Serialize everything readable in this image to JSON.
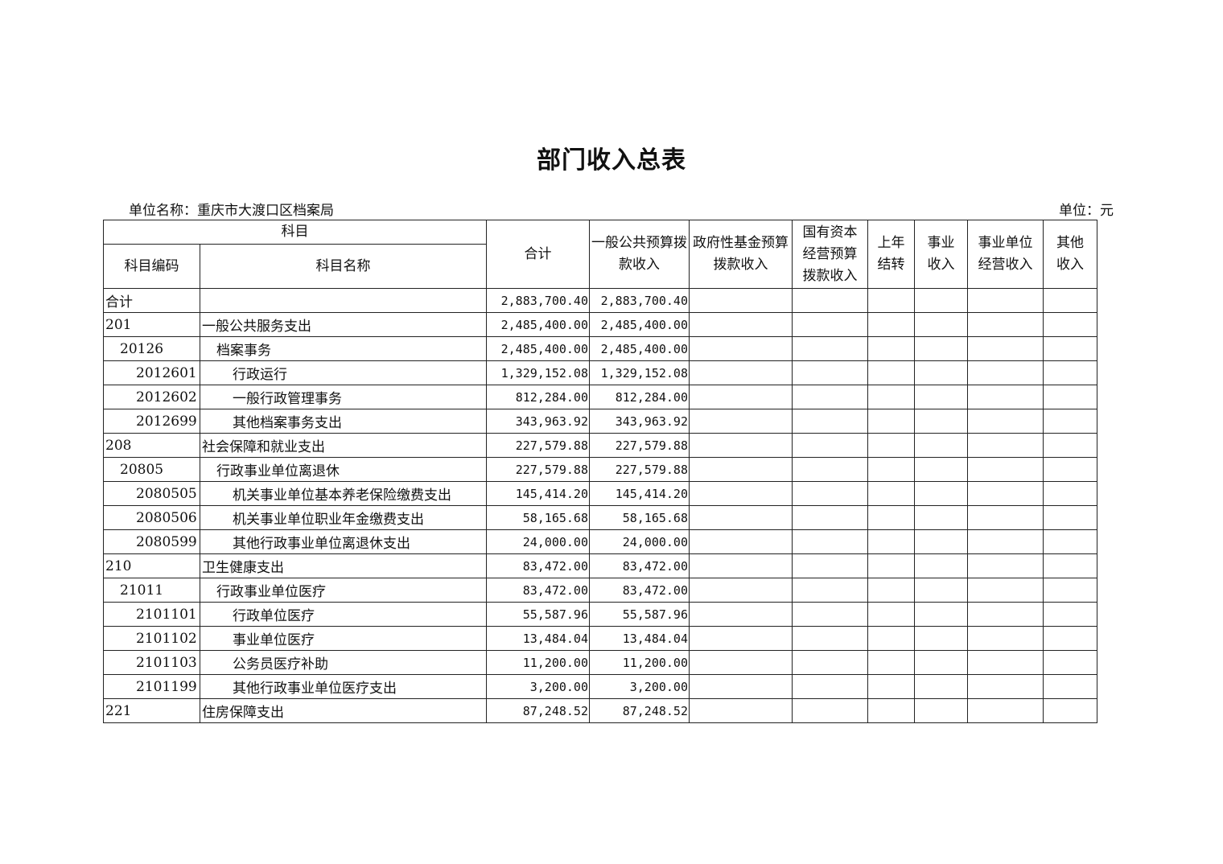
{
  "title": "部门收入总表",
  "unit_name": "单位名称：重庆市大渡口区档案局",
  "unit": "单位：元",
  "headers": {
    "subject": "科目",
    "code": "科目编码",
    "name": "科目名称",
    "total": "合计",
    "general": "一般公共预算拨款收入",
    "fund": "政府性基金预算拨款收入",
    "state_capital": "国有资本经营预算拨款收入",
    "carryover": "上年结转",
    "business": "事业收入",
    "business_unit": "事业单位经营收入",
    "other": "其他收入"
  },
  "rows": [
    {
      "level": 1,
      "code": "合计",
      "name": "",
      "total": "2,883,700.40",
      "general": "2,883,700.40"
    },
    {
      "level": 1,
      "code": "201",
      "name": "一般公共服务支出",
      "total": "2,485,400.00",
      "general": "2,485,400.00"
    },
    {
      "level": 2,
      "code": "20126",
      "name": "档案事务",
      "total": "2,485,400.00",
      "general": "2,485,400.00"
    },
    {
      "level": 3,
      "code": "2012601",
      "name": "行政运行",
      "total": "1,329,152.08",
      "general": "1,329,152.08"
    },
    {
      "level": 3,
      "code": "2012602",
      "name": "一般行政管理事务",
      "total": "812,284.00",
      "general": "812,284.00"
    },
    {
      "level": 3,
      "code": "2012699",
      "name": "其他档案事务支出",
      "total": "343,963.92",
      "general": "343,963.92"
    },
    {
      "level": 1,
      "code": "208",
      "name": "社会保障和就业支出",
      "total": "227,579.88",
      "general": "227,579.88"
    },
    {
      "level": 2,
      "code": "20805",
      "name": "行政事业单位离退休",
      "total": "227,579.88",
      "general": "227,579.88"
    },
    {
      "level": 3,
      "code": "2080505",
      "name": "机关事业单位基本养老保险缴费支出",
      "total": "145,414.20",
      "general": "145,414.20"
    },
    {
      "level": 3,
      "code": "2080506",
      "name": "机关事业单位职业年金缴费支出",
      "total": "58,165.68",
      "general": "58,165.68"
    },
    {
      "level": 3,
      "code": "2080599",
      "name": "其他行政事业单位离退休支出",
      "total": "24,000.00",
      "general": "24,000.00"
    },
    {
      "level": 1,
      "code": "210",
      "name": "卫生健康支出",
      "total": "83,472.00",
      "general": "83,472.00"
    },
    {
      "level": 2,
      "code": "21011",
      "name": "行政事业单位医疗",
      "total": "83,472.00",
      "general": "83,472.00"
    },
    {
      "level": 3,
      "code": "2101101",
      "name": "行政单位医疗",
      "total": "55,587.96",
      "general": "55,587.96"
    },
    {
      "level": 3,
      "code": "2101102",
      "name": "事业单位医疗",
      "total": "13,484.04",
      "general": "13,484.04"
    },
    {
      "level": 3,
      "code": "2101103",
      "name": "公务员医疗补助",
      "total": "11,200.00",
      "general": "11,200.00"
    },
    {
      "level": 3,
      "code": "2101199",
      "name": "其他行政事业单位医疗支出",
      "total": "3,200.00",
      "general": "3,200.00"
    },
    {
      "level": 1,
      "code": "221",
      "name": "住房保障支出",
      "total": "87,248.52",
      "general": "87,248.52"
    }
  ]
}
